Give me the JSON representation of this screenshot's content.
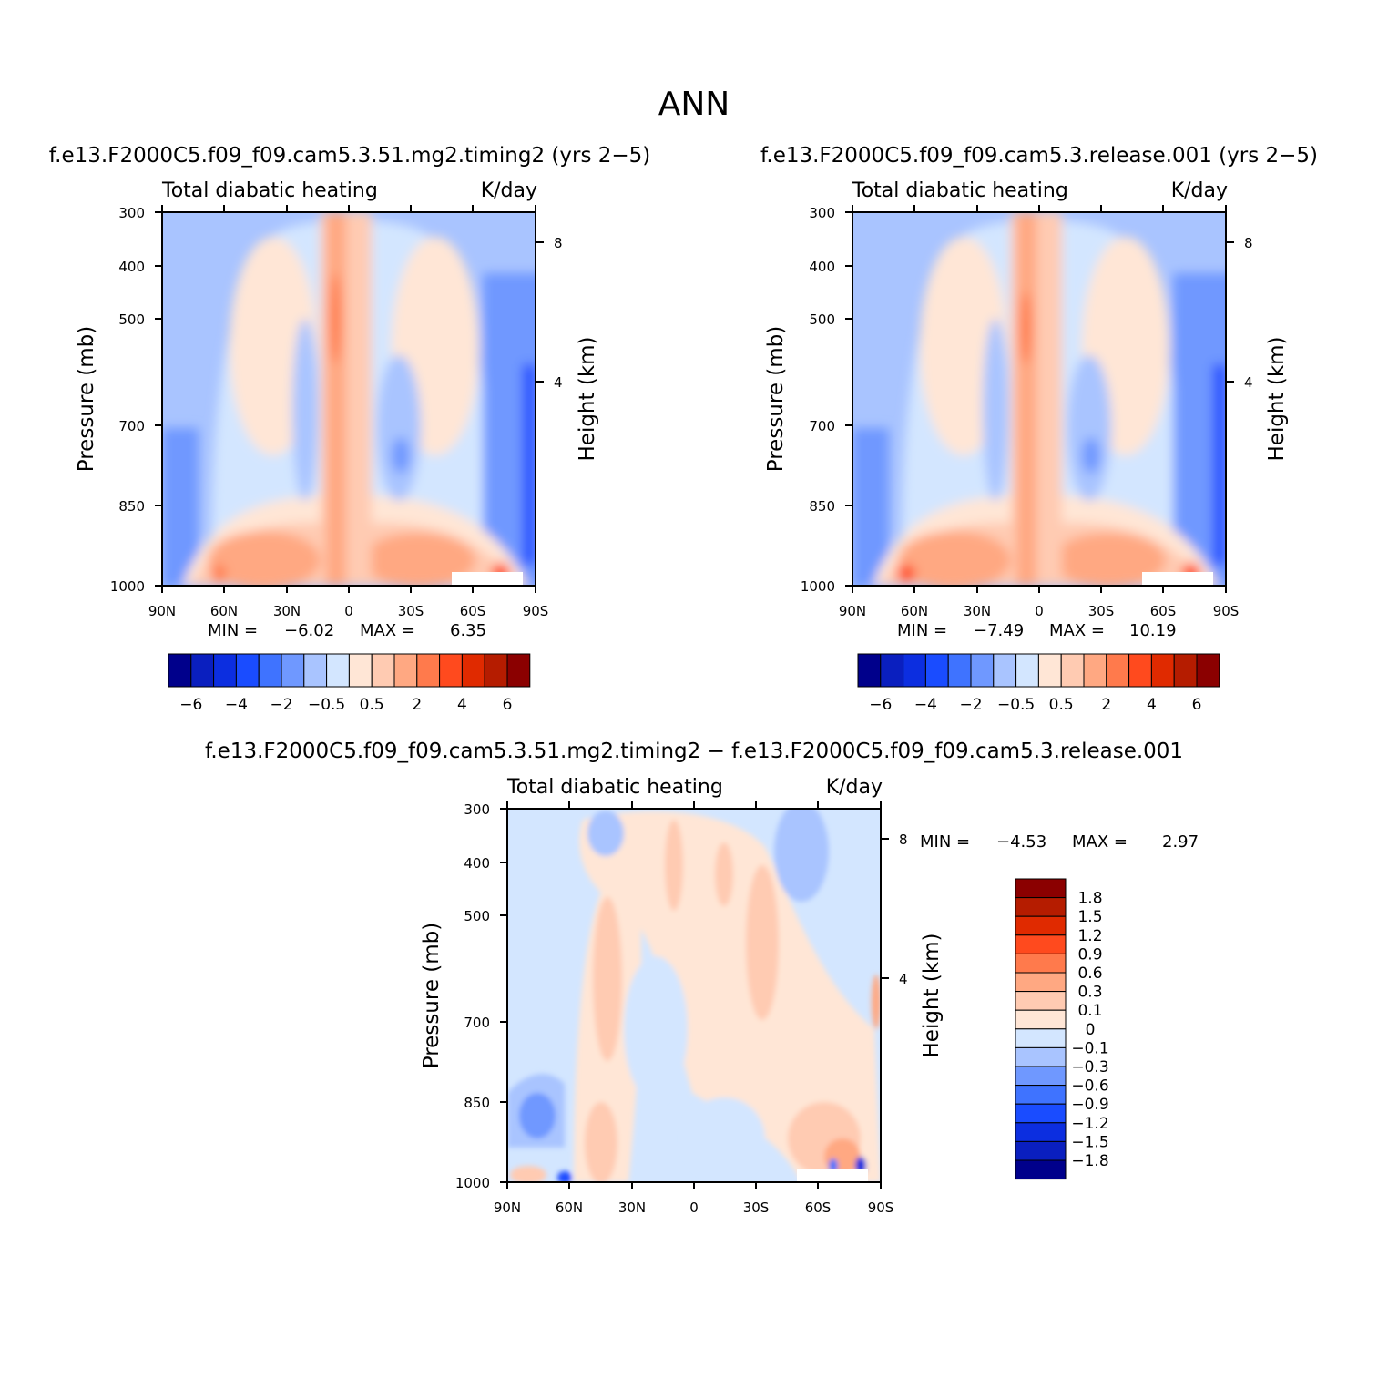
{
  "figure_title": "ANN",
  "palette": {
    "fills": [
      "#00008b",
      "#0a1fbf",
      "#0c2ee0",
      "#1a4cff",
      "#3f73ff",
      "#6f98ff",
      "#a9c4ff",
      "#d3e6ff",
      "#ffe6d6",
      "#ffcbb2",
      "#ffa882",
      "#ff7a4c",
      "#ff4a1e",
      "#e02a00",
      "#b51c00",
      "#8b0000"
    ]
  },
  "chart_data": [
    {
      "type": "contour",
      "case_title": "f.e13.F2000C5.f09_f09.cam5.3.51.mg2.timing2 (yrs 2−5)",
      "variable": "Total diabatic heating",
      "units": "K/day",
      "ylabel": "Pressure (mb)",
      "y2label": "Height (km)",
      "x_ticks": [
        "90N",
        "60N",
        "30N",
        "0",
        "30S",
        "60S",
        "90S"
      ],
      "y_ticks": [
        "300",
        "400",
        "500",
        "700",
        "850",
        "1000"
      ],
      "y2_ticks": [
        "8",
        "4"
      ],
      "xlim": [
        90,
        -90
      ],
      "ylim": [
        1000,
        300
      ],
      "min_label": "MIN =",
      "min": "−6.02",
      "max_label": "MAX =",
      "max": "6.35",
      "levels": [
        "−6",
        "−4",
        "−2",
        "−0.5",
        "0.5",
        "2",
        "4",
        "6"
      ]
    },
    {
      "type": "contour",
      "case_title": "f.e13.F2000C5.f09_f09.cam5.3.release.001 (yrs 2−5)",
      "variable": "Total diabatic heating",
      "units": "K/day",
      "ylabel": "Pressure (mb)",
      "y2label": "Height (km)",
      "x_ticks": [
        "90N",
        "60N",
        "30N",
        "0",
        "30S",
        "60S",
        "90S"
      ],
      "y_ticks": [
        "300",
        "400",
        "500",
        "700",
        "850",
        "1000"
      ],
      "y2_ticks": [
        "8",
        "4"
      ],
      "xlim": [
        90,
        -90
      ],
      "ylim": [
        1000,
        300
      ],
      "min_label": "MIN =",
      "min": "−7.49",
      "max_label": "MAX =",
      "max": "10.19",
      "levels": [
        "−6",
        "−4",
        "−2",
        "−0.5",
        "0.5",
        "2",
        "4",
        "6"
      ]
    },
    {
      "type": "contour",
      "case_title": "f.e13.F2000C5.f09_f09.cam5.3.51.mg2.timing2 − f.e13.F2000C5.f09_f09.cam5.3.release.001",
      "variable": "Total diabatic heating",
      "units": "K/day",
      "ylabel": "Pressure (mb)",
      "y2label": "Height (km)",
      "x_ticks": [
        "90N",
        "60N",
        "30N",
        "0",
        "30S",
        "60S",
        "90S"
      ],
      "y_ticks": [
        "300",
        "400",
        "500",
        "700",
        "850",
        "1000"
      ],
      "y2_ticks": [
        "8",
        "4"
      ],
      "xlim": [
        90,
        -90
      ],
      "ylim": [
        1000,
        300
      ],
      "min_label": "MIN =",
      "min": "−4.53",
      "max_label": "MAX =",
      "max": "2.97",
      "levels": [
        "1.8",
        "1.5",
        "1.2",
        "0.9",
        "0.6",
        "0.3",
        "0.1",
        "0",
        "−0.1",
        "−0.3",
        "−0.6",
        "−0.9",
        "−1.2",
        "−1.5",
        "−1.8"
      ]
    }
  ]
}
